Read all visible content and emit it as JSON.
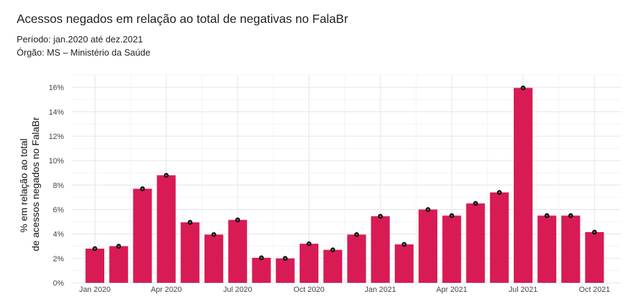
{
  "chart_data": {
    "type": "bar",
    "title": "Acessos negados em relação ao total de negativas no FalaBr",
    "subtitle_lines": [
      "Período: jan.2020 até dez.2021",
      "Órgão: MS – Ministério da Saúde"
    ],
    "ylabel_lines": [
      "% em relação ao total",
      "de acessos negados no FalaBr"
    ],
    "xlabel": "",
    "ylim": [
      0,
      17
    ],
    "yticks": [
      0,
      2,
      4,
      6,
      8,
      10,
      12,
      14,
      16
    ],
    "ytick_labels": [
      "0%",
      "2%",
      "4%",
      "6%",
      "8%",
      "10%",
      "12%",
      "14%",
      "16%"
    ],
    "categories": [
      "2020-01",
      "2020-02",
      "2020-03",
      "2020-04",
      "2020-05",
      "2020-06",
      "2020-07",
      "2020-08",
      "2020-09",
      "2020-10",
      "2020-11",
      "2020-12",
      "2021-01",
      "2021-02",
      "2021-03",
      "2021-04",
      "2021-05",
      "2021-06",
      "2021-07",
      "2021-08",
      "2021-09",
      "2021-10"
    ],
    "values": [
      2.8,
      3.0,
      7.7,
      8.8,
      4.95,
      3.95,
      5.15,
      2.05,
      2.0,
      3.2,
      2.7,
      3.95,
      5.45,
      3.15,
      6.0,
      5.5,
      6.5,
      7.4,
      15.95,
      5.5,
      5.5,
      4.15
    ],
    "xtick_labels": [
      {
        "label": "Jan 2020",
        "index": 0
      },
      {
        "label": "Apr 2020",
        "index": 3
      },
      {
        "label": "Jul 2020",
        "index": 6
      },
      {
        "label": "Oct 2020",
        "index": 9
      },
      {
        "label": "Jan 2021",
        "index": 12
      },
      {
        "label": "Apr 2021",
        "index": 15
      },
      {
        "label": "Jul 2021",
        "index": 18
      },
      {
        "label": "Oct 2021",
        "index": 21
      }
    ],
    "bar_color": "#d81b55",
    "grid": true,
    "legend": "none"
  }
}
